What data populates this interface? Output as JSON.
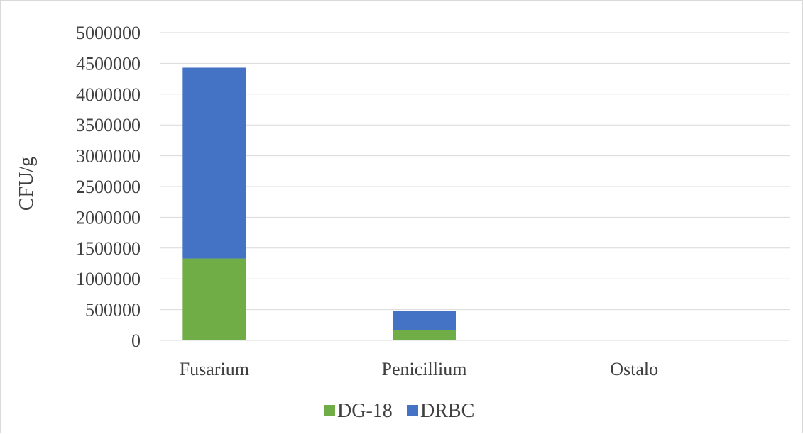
{
  "chart_data": {
    "type": "bar",
    "stacked": true,
    "title": "",
    "xlabel": "",
    "ylabel": "CFU/g",
    "ylim": [
      0,
      5000000
    ],
    "yticks": [
      0,
      500000,
      1000000,
      1500000,
      2000000,
      2500000,
      3000000,
      3500000,
      4000000,
      4500000,
      5000000
    ],
    "grid": true,
    "legend_position": "bottom",
    "categories": [
      "Fusarium",
      "Penicillium",
      "Ostalo"
    ],
    "series": [
      {
        "name": "DG-18",
        "color": "#70ad47",
        "values": [
          1330000,
          170000,
          0
        ]
      },
      {
        "name": "DRBC",
        "color": "#4472c4",
        "values": [
          3100000,
          310000,
          0
        ]
      }
    ]
  }
}
